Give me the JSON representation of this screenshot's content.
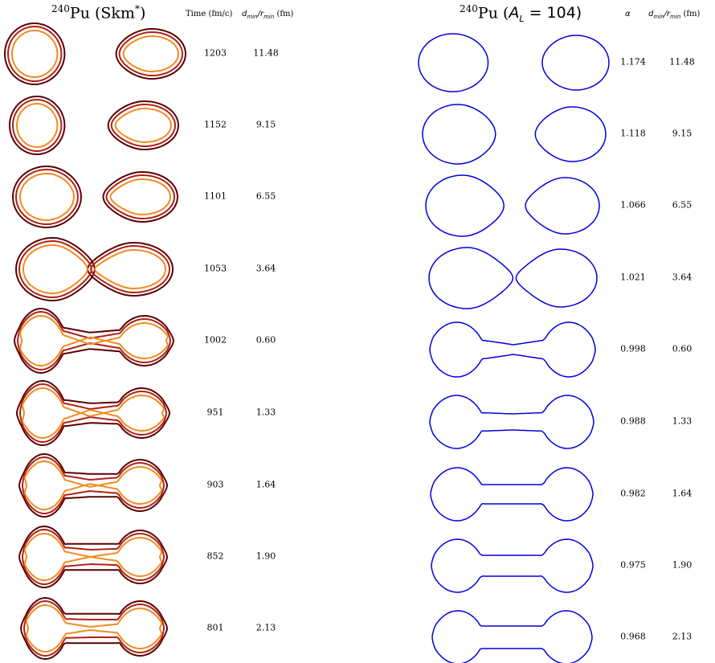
{
  "left_panel": {
    "title_sup": "240",
    "title_main": "Pu (Skm",
    "title_star": "*",
    "title_close": ")",
    "col_time_header": "Time (fm/c)",
    "col_ratio_header_a": "d",
    "col_ratio_header_a_sub": "min",
    "col_ratio_header_sep": "/",
    "col_ratio_header_b": "r",
    "col_ratio_header_b_sub": "min",
    "col_ratio_header_unit": " (fm)",
    "contour_colors": [
      "#5a0000",
      "#b02018",
      "#f08c1e"
    ]
  },
  "right_panel": {
    "title_sup": "240",
    "title_main": "Pu (",
    "title_a": "A",
    "title_a_sub": "L",
    "title_eq": " = 104)",
    "col_alpha_header": "α",
    "col_ratio_header_a": "d",
    "col_ratio_header_a_sub": "min",
    "col_ratio_header_sep": "/",
    "col_ratio_header_b": "r",
    "col_ratio_header_b_sub": "min",
    "col_ratio_header_unit": " (fm)",
    "shape_color": "#0000dd"
  },
  "rows": [
    {
      "time": "1203",
      "left_ratio": "11.48",
      "alpha": "1.174",
      "right_ratio": "11.48"
    },
    {
      "time": "1152",
      "left_ratio": "9.15",
      "alpha": "1.118",
      "right_ratio": "9.15"
    },
    {
      "time": "1101",
      "left_ratio": "6.55",
      "alpha": "1.066",
      "right_ratio": "6.55"
    },
    {
      "time": "1053",
      "left_ratio": "3.64",
      "alpha": "1.021",
      "right_ratio": "3.64"
    },
    {
      "time": "1002",
      "left_ratio": "0.60",
      "alpha": "0.998",
      "right_ratio": "0.60"
    },
    {
      "time": "951",
      "left_ratio": "1.33",
      "alpha": "0.988",
      "right_ratio": "1.33"
    },
    {
      "time": "903",
      "left_ratio": "1.64",
      "alpha": "0.982",
      "right_ratio": "1.64"
    },
    {
      "time": "852",
      "left_ratio": "1.90",
      "alpha": "0.975",
      "right_ratio": "1.90"
    },
    {
      "time": "801",
      "left_ratio": "2.13",
      "alpha": "0.968",
      "right_ratio": "2.13"
    }
  ]
}
